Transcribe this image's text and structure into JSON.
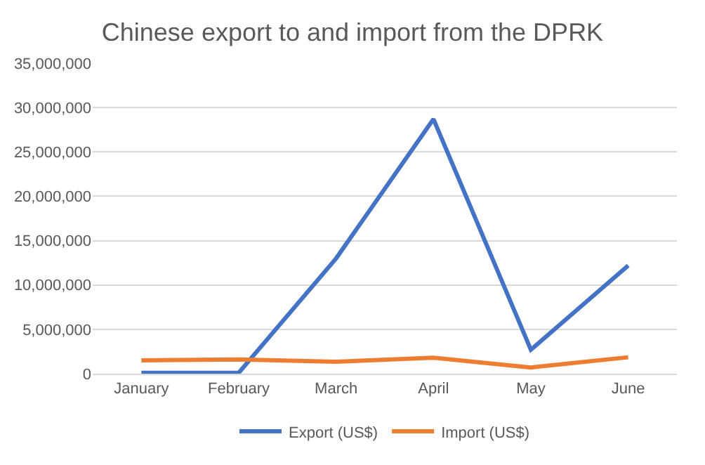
{
  "chart_data": {
    "type": "line",
    "title": "Chinese export to and import from the DPRK",
    "categories": [
      "January",
      "February",
      "March",
      "April",
      "May",
      "June"
    ],
    "series": [
      {
        "name": "Export (US$)",
        "color": "#4472c4",
        "values": [
          100000,
          100000,
          13000000,
          28700000,
          2700000,
          12200000
        ]
      },
      {
        "name": "Import (US$)",
        "color": "#ed7d31",
        "values": [
          1500000,
          1600000,
          1350000,
          1800000,
          700000,
          1850000
        ]
      }
    ],
    "ylim": [
      0,
      35000000
    ],
    "yticks": [
      {
        "value": 0,
        "label": "0"
      },
      {
        "value": 5000000,
        "label": "5,000,000"
      },
      {
        "value": 10000000,
        "label": "10,000,000"
      },
      {
        "value": 15000000,
        "label": "15,000,000"
      },
      {
        "value": 20000000,
        "label": "20,000,000"
      },
      {
        "value": 25000000,
        "label": "25,000,000"
      },
      {
        "value": 30000000,
        "label": "30,000,000"
      },
      {
        "value": 35000000,
        "label": "35,000,000"
      }
    ],
    "grid": "y",
    "legend": "bottom",
    "marker": "none",
    "line_style": "solid"
  }
}
